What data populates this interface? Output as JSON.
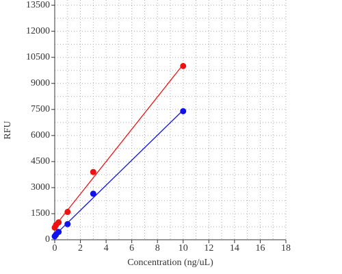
{
  "chart_data": {
    "type": "scatter",
    "x_label": "Concentration (ng/uL)",
    "y_label": "RFU",
    "x": [
      0,
      0.1,
      0.3,
      1,
      3,
      10
    ],
    "series": [
      {
        "color": "#ee1111",
        "values": [
          700,
          850,
          1000,
          1600,
          3900,
          10000
        ]
      },
      {
        "color": "#1111ee",
        "values": [
          200,
          300,
          450,
          900,
          2650,
          7400
        ]
      }
    ],
    "trendline": true,
    "xlim": [
      0,
      18
    ],
    "xticks": [
      0,
      2,
      4,
      6,
      8,
      10,
      12,
      14,
      16,
      18
    ],
    "ylim": [
      0,
      13800
    ],
    "yticks": [
      0,
      1500,
      3000,
      4500,
      6000,
      7500,
      9000,
      10500,
      12000,
      13500
    ],
    "grid": true
  }
}
